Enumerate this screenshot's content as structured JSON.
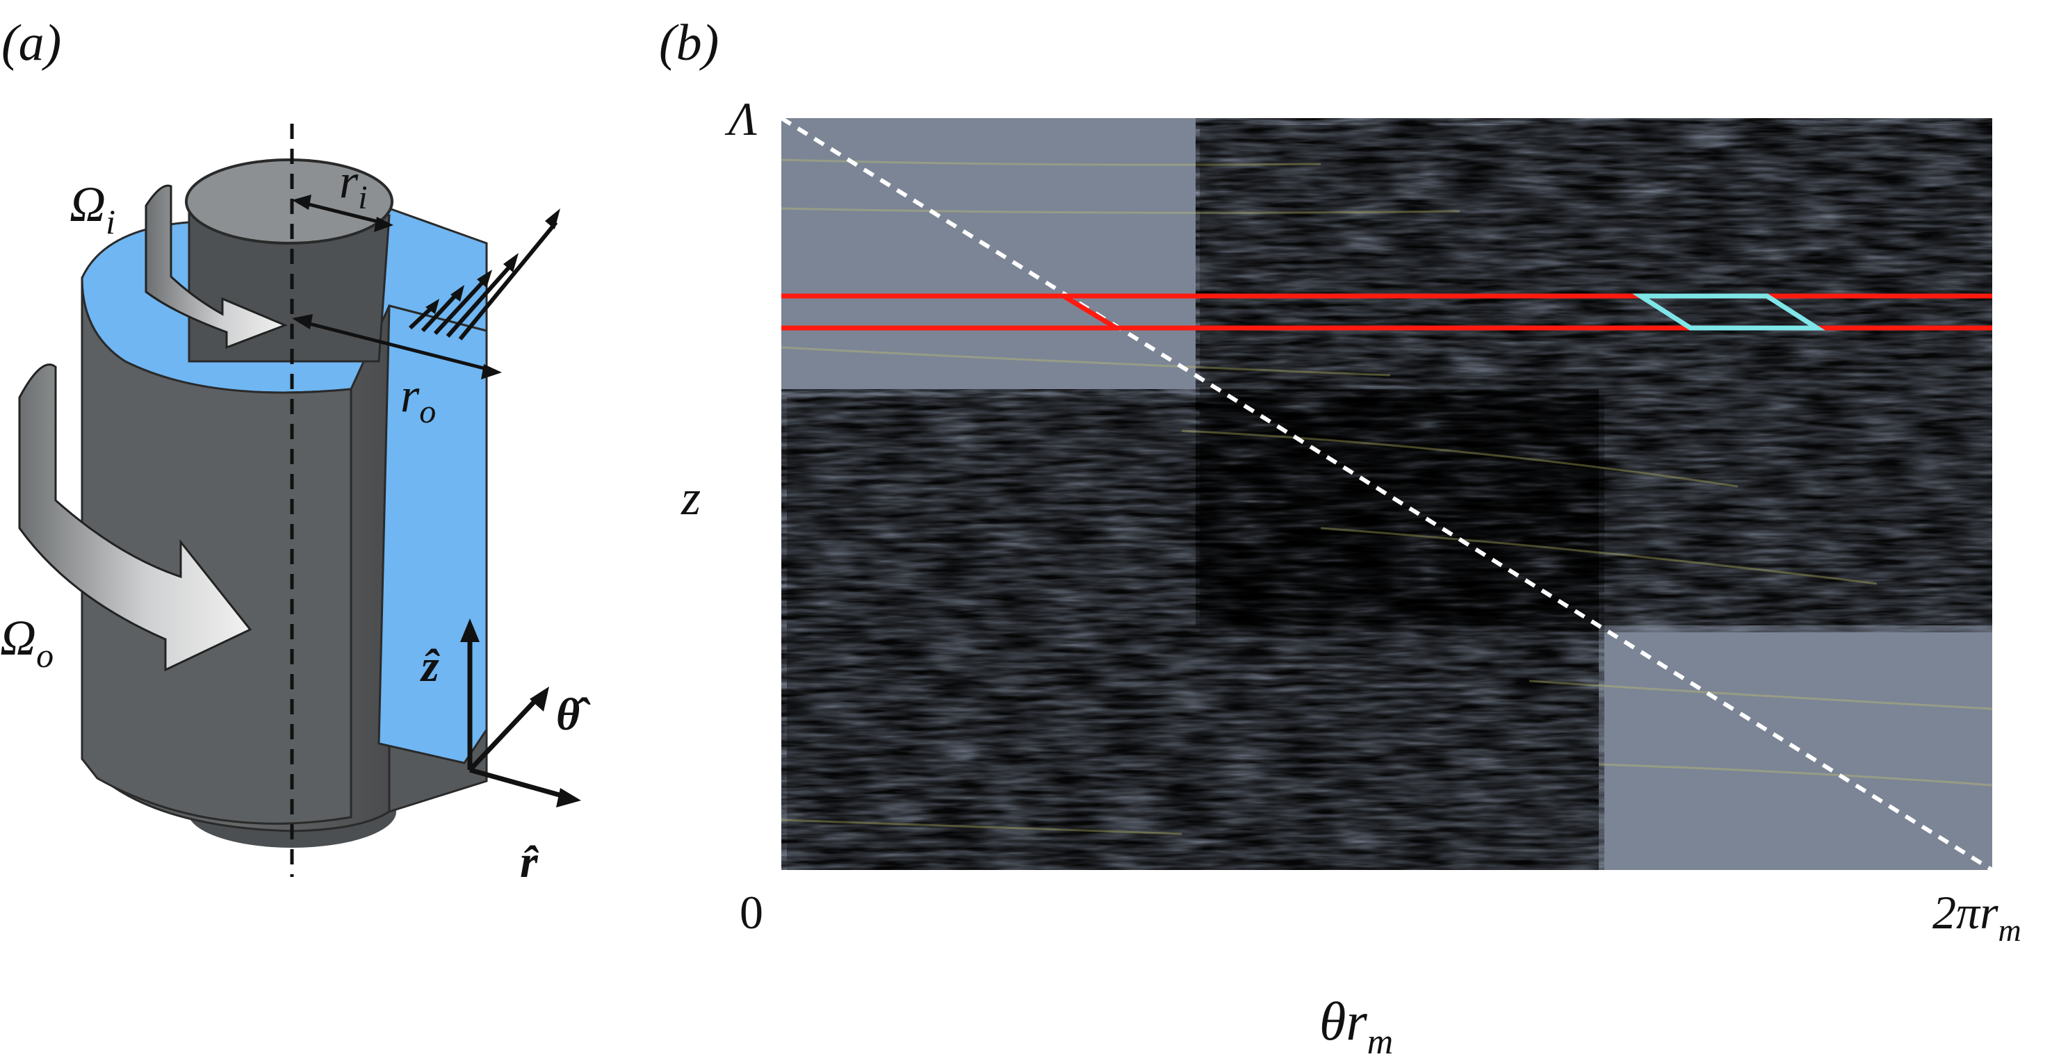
{
  "panel_a": {
    "label": "(a)",
    "symbols": {
      "omega_inner": "Ω",
      "omega_inner_sub": "i",
      "omega_outer": "Ω",
      "omega_outer_sub": "o",
      "r_inner": "r",
      "r_inner_sub": "i",
      "r_outer": "r",
      "r_outer_sub": "o",
      "z_hat": "ẑ",
      "theta_hat": "θ̂",
      "r_hat": "r̂"
    },
    "colors": {
      "cylinder_dark": "#5a5d5f",
      "cylinder_top": "#8c9092",
      "gap_fluid": "#6fb6f2",
      "arrow_fill": "#d8d8d8"
    }
  },
  "panel_b": {
    "label": "(b)",
    "ylabel": "z",
    "ytick_top": "Λ",
    "xtick_left": "0",
    "xtick_right": "2πr",
    "xtick_right_sub": "m",
    "xlabel": "θr",
    "xlabel_sub": "m",
    "colors": {
      "background": "#7c8595",
      "positive": "#d9d83a",
      "negative": "#3f45d9",
      "stripes": "#ff1a10",
      "parallelogram": "#7fe6e8",
      "diagonal": "#ffffff"
    }
  }
}
